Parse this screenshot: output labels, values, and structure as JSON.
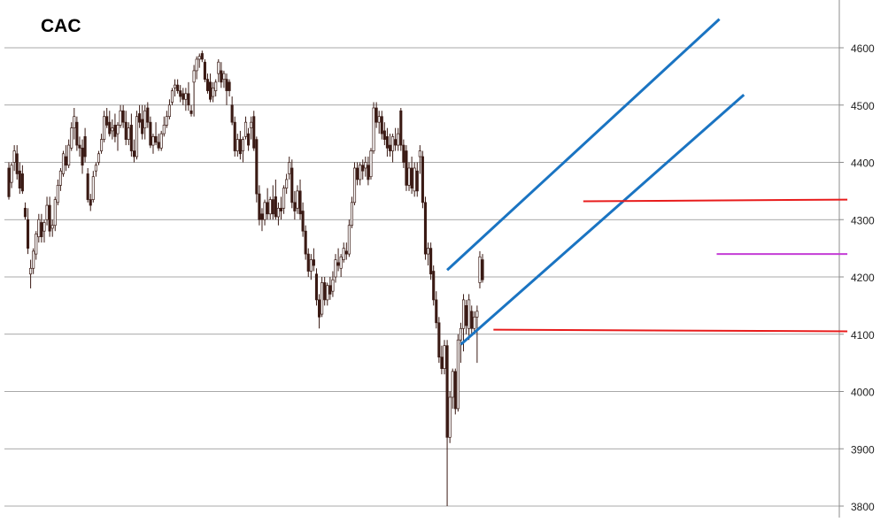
{
  "chart_data": {
    "type": "candlestick",
    "title": "CAC",
    "ylim": [
      3800,
      4650
    ],
    "y_ticks": [
      "3800",
      "3900",
      "4000",
      "4100",
      "4200",
      "4300",
      "4400",
      "4500",
      "4600"
    ],
    "grid": true,
    "y_axis_side": "right",
    "candles": [
      {
        "o": 4390,
        "h": 4400,
        "l": 4335,
        "c": 4340
      },
      {
        "o": 4365,
        "h": 4400,
        "l": 4355,
        "c": 4395
      },
      {
        "o": 4400,
        "h": 4430,
        "l": 4385,
        "c": 4420
      },
      {
        "o": 4415,
        "h": 4430,
        "l": 4370,
        "c": 4380
      },
      {
        "o": 4385,
        "h": 4400,
        "l": 4345,
        "c": 4355
      },
      {
        "o": 4380,
        "h": 4395,
        "l": 4345,
        "c": 4350
      },
      {
        "o": 4320,
        "h": 4330,
        "l": 4300,
        "c": 4305
      },
      {
        "o": 4300,
        "h": 4320,
        "l": 4240,
        "c": 4250
      },
      {
        "o": 4205,
        "h": 4230,
        "l": 4180,
        "c": 4215
      },
      {
        "o": 4215,
        "h": 4250,
        "l": 4205,
        "c": 4245
      },
      {
        "o": 4240,
        "h": 4280,
        "l": 4230,
        "c": 4275
      },
      {
        "o": 4270,
        "h": 4310,
        "l": 4260,
        "c": 4300
      },
      {
        "o": 4295,
        "h": 4310,
        "l": 4260,
        "c": 4270
      },
      {
        "o": 4280,
        "h": 4300,
        "l": 4260,
        "c": 4295
      },
      {
        "o": 4300,
        "h": 4340,
        "l": 4290,
        "c": 4325
      },
      {
        "o": 4325,
        "h": 4340,
        "l": 4270,
        "c": 4280
      },
      {
        "o": 4285,
        "h": 4300,
        "l": 4270,
        "c": 4290
      },
      {
        "o": 4290,
        "h": 4340,
        "l": 4280,
        "c": 4335
      },
      {
        "o": 4330,
        "h": 4370,
        "l": 4325,
        "c": 4360
      },
      {
        "o": 4360,
        "h": 4390,
        "l": 4350,
        "c": 4385
      },
      {
        "o": 4380,
        "h": 4420,
        "l": 4375,
        "c": 4415
      },
      {
        "o": 4410,
        "h": 4430,
        "l": 4385,
        "c": 4395
      },
      {
        "o": 4395,
        "h": 4440,
        "l": 4390,
        "c": 4430
      },
      {
        "o": 4425,
        "h": 4470,
        "l": 4420,
        "c": 4460
      },
      {
        "o": 4460,
        "h": 4495,
        "l": 4440,
        "c": 4480
      },
      {
        "o": 4470,
        "h": 4480,
        "l": 4420,
        "c": 4430
      },
      {
        "o": 4430,
        "h": 4445,
        "l": 4410,
        "c": 4425
      },
      {
        "o": 4425,
        "h": 4440,
        "l": 4380,
        "c": 4395
      },
      {
        "o": 4445,
        "h": 4460,
        "l": 4400,
        "c": 4410
      },
      {
        "o": 4380,
        "h": 4390,
        "l": 4330,
        "c": 4335
      },
      {
        "o": 4335,
        "h": 4345,
        "l": 4315,
        "c": 4325
      },
      {
        "o": 4335,
        "h": 4385,
        "l": 4330,
        "c": 4375
      },
      {
        "o": 4385,
        "h": 4400,
        "l": 4375,
        "c": 4395
      },
      {
        "o": 4400,
        "h": 4420,
        "l": 4395,
        "c": 4415
      },
      {
        "o": 4420,
        "h": 4450,
        "l": 4415,
        "c": 4440
      },
      {
        "o": 4440,
        "h": 4490,
        "l": 4435,
        "c": 4480
      },
      {
        "o": 4480,
        "h": 4495,
        "l": 4460,
        "c": 4465
      },
      {
        "o": 4470,
        "h": 4490,
        "l": 4445,
        "c": 4450
      },
      {
        "o": 4455,
        "h": 4475,
        "l": 4440,
        "c": 4460
      },
      {
        "o": 4465,
        "h": 4485,
        "l": 4435,
        "c": 4445
      },
      {
        "o": 4450,
        "h": 4470,
        "l": 4420,
        "c": 4465
      },
      {
        "o": 4465,
        "h": 4500,
        "l": 4460,
        "c": 4490
      },
      {
        "o": 4490,
        "h": 4500,
        "l": 4460,
        "c": 4470
      },
      {
        "o": 4470,
        "h": 4490,
        "l": 4430,
        "c": 4440
      },
      {
        "o": 4440,
        "h": 4470,
        "l": 4430,
        "c": 4460
      },
      {
        "o": 4465,
        "h": 4485,
        "l": 4410,
        "c": 4420
      },
      {
        "o": 4420,
        "h": 4440,
        "l": 4400,
        "c": 4410
      },
      {
        "o": 4410,
        "h": 4490,
        "l": 4405,
        "c": 4480
      },
      {
        "o": 4485,
        "h": 4500,
        "l": 4460,
        "c": 4470
      },
      {
        "o": 4475,
        "h": 4500,
        "l": 4440,
        "c": 4450
      },
      {
        "o": 4460,
        "h": 4500,
        "l": 4440,
        "c": 4490
      },
      {
        "o": 4495,
        "h": 4505,
        "l": 4460,
        "c": 4470
      },
      {
        "o": 4470,
        "h": 4480,
        "l": 4425,
        "c": 4430
      },
      {
        "o": 4430,
        "h": 4450,
        "l": 4415,
        "c": 4445
      },
      {
        "o": 4445,
        "h": 4470,
        "l": 4430,
        "c": 4435
      },
      {
        "o": 4435,
        "h": 4450,
        "l": 4420,
        "c": 4425
      },
      {
        "o": 4425,
        "h": 4455,
        "l": 4420,
        "c": 4450
      },
      {
        "o": 4450,
        "h": 4480,
        "l": 4445,
        "c": 4465
      },
      {
        "o": 4465,
        "h": 4490,
        "l": 4460,
        "c": 4480
      },
      {
        "o": 4480,
        "h": 4510,
        "l": 4475,
        "c": 4500
      },
      {
        "o": 4505,
        "h": 4530,
        "l": 4500,
        "c": 4525
      },
      {
        "o": 4530,
        "h": 4545,
        "l": 4515,
        "c": 4535
      },
      {
        "o": 4535,
        "h": 4545,
        "l": 4520,
        "c": 4525
      },
      {
        "o": 4525,
        "h": 4535,
        "l": 4505,
        "c": 4515
      },
      {
        "o": 4520,
        "h": 4530,
        "l": 4500,
        "c": 4510
      },
      {
        "o": 4510,
        "h": 4530,
        "l": 4490,
        "c": 4520
      },
      {
        "o": 4520,
        "h": 4540,
        "l": 4490,
        "c": 4500
      },
      {
        "o": 4490,
        "h": 4500,
        "l": 4480,
        "c": 4485
      },
      {
        "o": 4540,
        "h": 4570,
        "l": 4480,
        "c": 4560
      },
      {
        "o": 4560,
        "h": 4585,
        "l": 4545,
        "c": 4580
      },
      {
        "o": 4580,
        "h": 4590,
        "l": 4565,
        "c": 4585
      },
      {
        "o": 4590,
        "h": 4595,
        "l": 4575,
        "c": 4580
      },
      {
        "o": 4575,
        "h": 4580,
        "l": 4540,
        "c": 4545
      },
      {
        "o": 4545,
        "h": 4555,
        "l": 4520,
        "c": 4525
      },
      {
        "o": 4540,
        "h": 4555,
        "l": 4505,
        "c": 4510
      },
      {
        "o": 4515,
        "h": 4540,
        "l": 4505,
        "c": 4530
      },
      {
        "o": 4525,
        "h": 4545,
        "l": 4515,
        "c": 4540
      },
      {
        "o": 4555,
        "h": 4580,
        "l": 4540,
        "c": 4575
      },
      {
        "o": 4560,
        "h": 4575,
        "l": 4530,
        "c": 4540
      },
      {
        "o": 4545,
        "h": 4560,
        "l": 4530,
        "c": 4555
      },
      {
        "o": 4545,
        "h": 4555,
        "l": 4500,
        "c": 4525
      },
      {
        "o": 4540,
        "h": 4545,
        "l": 4515,
        "c": 4525
      },
      {
        "o": 4500,
        "h": 4515,
        "l": 4465,
        "c": 4470
      },
      {
        "o": 4470,
        "h": 4480,
        "l": 4410,
        "c": 4420
      },
      {
        "o": 4420,
        "h": 4450,
        "l": 4410,
        "c": 4440
      },
      {
        "o": 4440,
        "h": 4455,
        "l": 4405,
        "c": 4415
      },
      {
        "o": 4420,
        "h": 4445,
        "l": 4400,
        "c": 4440
      },
      {
        "o": 4445,
        "h": 4480,
        "l": 4440,
        "c": 4470
      },
      {
        "o": 4450,
        "h": 4460,
        "l": 4420,
        "c": 4430
      },
      {
        "o": 4460,
        "h": 4480,
        "l": 4440,
        "c": 4470
      },
      {
        "o": 4480,
        "h": 4490,
        "l": 4420,
        "c": 4425
      },
      {
        "o": 4440,
        "h": 4445,
        "l": 4330,
        "c": 4345
      },
      {
        "o": 4345,
        "h": 4360,
        "l": 4290,
        "c": 4300
      },
      {
        "o": 4310,
        "h": 4320,
        "l": 4280,
        "c": 4300
      },
      {
        "o": 4300,
        "h": 4335,
        "l": 4290,
        "c": 4330
      },
      {
        "o": 4330,
        "h": 4355,
        "l": 4300,
        "c": 4310
      },
      {
        "o": 4310,
        "h": 4340,
        "l": 4300,
        "c": 4335
      },
      {
        "o": 4335,
        "h": 4360,
        "l": 4300,
        "c": 4310
      },
      {
        "o": 4340,
        "h": 4370,
        "l": 4300,
        "c": 4305
      },
      {
        "o": 4305,
        "h": 4330,
        "l": 4290,
        "c": 4320
      },
      {
        "o": 4320,
        "h": 4340,
        "l": 4300,
        "c": 4315
      },
      {
        "o": 4320,
        "h": 4360,
        "l": 4310,
        "c": 4355
      },
      {
        "o": 4355,
        "h": 4380,
        "l": 4345,
        "c": 4370
      },
      {
        "o": 4380,
        "h": 4410,
        "l": 4370,
        "c": 4400
      },
      {
        "o": 4390,
        "h": 4405,
        "l": 4320,
        "c": 4330
      },
      {
        "o": 4330,
        "h": 4350,
        "l": 4300,
        "c": 4315
      },
      {
        "o": 4320,
        "h": 4360,
        "l": 4310,
        "c": 4350
      },
      {
        "o": 4350,
        "h": 4370,
        "l": 4300,
        "c": 4310
      },
      {
        "o": 4315,
        "h": 4330,
        "l": 4270,
        "c": 4280
      },
      {
        "o": 4280,
        "h": 4290,
        "l": 4230,
        "c": 4240
      },
      {
        "o": 4240,
        "h": 4250,
        "l": 4200,
        "c": 4210
      },
      {
        "o": 4210,
        "h": 4240,
        "l": 4195,
        "c": 4230
      },
      {
        "o": 4230,
        "h": 4250,
        "l": 4210,
        "c": 4220
      },
      {
        "o": 4205,
        "h": 4215,
        "l": 4150,
        "c": 4160
      },
      {
        "o": 4160,
        "h": 4170,
        "l": 4110,
        "c": 4130
      },
      {
        "o": 4135,
        "h": 4200,
        "l": 4130,
        "c": 4190
      },
      {
        "o": 4190,
        "h": 4200,
        "l": 4150,
        "c": 4160
      },
      {
        "o": 4160,
        "h": 4190,
        "l": 4150,
        "c": 4185
      },
      {
        "o": 4185,
        "h": 4200,
        "l": 4160,
        "c": 4170
      },
      {
        "o": 4175,
        "h": 4210,
        "l": 4165,
        "c": 4195
      },
      {
        "o": 4200,
        "h": 4240,
        "l": 4190,
        "c": 4230
      },
      {
        "o": 4225,
        "h": 4250,
        "l": 4210,
        "c": 4220
      },
      {
        "o": 4215,
        "h": 4240,
        "l": 4200,
        "c": 4235
      },
      {
        "o": 4230,
        "h": 4260,
        "l": 4225,
        "c": 4250
      },
      {
        "o": 4245,
        "h": 4260,
        "l": 4230,
        "c": 4240
      },
      {
        "o": 4240,
        "h": 4300,
        "l": 4235,
        "c": 4290
      },
      {
        "o": 4290,
        "h": 4340,
        "l": 4285,
        "c": 4330
      },
      {
        "o": 4330,
        "h": 4400,
        "l": 4325,
        "c": 4390
      },
      {
        "o": 4390,
        "h": 4400,
        "l": 4360,
        "c": 4370
      },
      {
        "o": 4370,
        "h": 4400,
        "l": 4360,
        "c": 4395
      },
      {
        "o": 4395,
        "h": 4405,
        "l": 4370,
        "c": 4385
      },
      {
        "o": 4390,
        "h": 4410,
        "l": 4375,
        "c": 4400
      },
      {
        "o": 4395,
        "h": 4410,
        "l": 4360,
        "c": 4370
      },
      {
        "o": 4375,
        "h": 4425,
        "l": 4370,
        "c": 4420
      },
      {
        "o": 4420,
        "h": 4505,
        "l": 4415,
        "c": 4495
      },
      {
        "o": 4495,
        "h": 4505,
        "l": 4460,
        "c": 4470
      },
      {
        "o": 4470,
        "h": 4490,
        "l": 4450,
        "c": 4480
      },
      {
        "o": 4480,
        "h": 4490,
        "l": 4440,
        "c": 4450
      },
      {
        "o": 4455,
        "h": 4470,
        "l": 4430,
        "c": 4440
      },
      {
        "o": 4445,
        "h": 4460,
        "l": 4410,
        "c": 4425
      },
      {
        "o": 4430,
        "h": 4450,
        "l": 4410,
        "c": 4420
      },
      {
        "o": 4420,
        "h": 4450,
        "l": 4400,
        "c": 4445
      },
      {
        "o": 4440,
        "h": 4460,
        "l": 4420,
        "c": 4430
      },
      {
        "o": 4430,
        "h": 4460,
        "l": 4420,
        "c": 4450
      },
      {
        "o": 4490,
        "h": 4495,
        "l": 4420,
        "c": 4430
      },
      {
        "o": 4430,
        "h": 4440,
        "l": 4390,
        "c": 4400
      },
      {
        "o": 4420,
        "h": 4430,
        "l": 4350,
        "c": 4360
      },
      {
        "o": 4360,
        "h": 4400,
        "l": 4350,
        "c": 4390
      },
      {
        "o": 4390,
        "h": 4410,
        "l": 4345,
        "c": 4355
      },
      {
        "o": 4350,
        "h": 4400,
        "l": 4340,
        "c": 4390
      },
      {
        "o": 4385,
        "h": 4400,
        "l": 4340,
        "c": 4350
      },
      {
        "o": 4410,
        "h": 4430,
        "l": 4380,
        "c": 4420
      },
      {
        "o": 4410,
        "h": 4420,
        "l": 4320,
        "c": 4330
      },
      {
        "o": 4330,
        "h": 4340,
        "l": 4230,
        "c": 4240
      },
      {
        "o": 4240,
        "h": 4260,
        "l": 4220,
        "c": 4250
      },
      {
        "o": 4250,
        "h": 4260,
        "l": 4195,
        "c": 4205
      },
      {
        "o": 4210,
        "h": 4220,
        "l": 4150,
        "c": 4160
      },
      {
        "o": 4160,
        "h": 4175,
        "l": 4110,
        "c": 4120
      },
      {
        "o": 4120,
        "h": 4130,
        "l": 4050,
        "c": 4060
      },
      {
        "o": 4060,
        "h": 4080,
        "l": 4030,
        "c": 4040
      },
      {
        "o": 4040,
        "h": 4090,
        "l": 4030,
        "c": 4080
      },
      {
        "o": 4080,
        "h": 4090,
        "l": 3800,
        "c": 3920
      },
      {
        "o": 3920,
        "h": 4000,
        "l": 3910,
        "c": 3990
      },
      {
        "o": 3990,
        "h": 4040,
        "l": 3970,
        "c": 4035
      },
      {
        "o": 4035,
        "h": 4040,
        "l": 3960,
        "c": 3970
      },
      {
        "o": 3970,
        "h": 4100,
        "l": 3965,
        "c": 4090
      },
      {
        "o": 4090,
        "h": 4120,
        "l": 4050,
        "c": 4110
      },
      {
        "o": 4110,
        "h": 4170,
        "l": 4070,
        "c": 4160
      },
      {
        "o": 4150,
        "h": 4160,
        "l": 4100,
        "c": 4115
      },
      {
        "o": 4110,
        "h": 4170,
        "l": 4090,
        "c": 4160
      },
      {
        "o": 4140,
        "h": 4150,
        "l": 4100,
        "c": 4110
      },
      {
        "o": 4110,
        "h": 4140,
        "l": 4100,
        "c": 4130
      },
      {
        "o": 4130,
        "h": 4150,
        "l": 4050,
        "c": 4140
      },
      {
        "o": 4190,
        "h": 4245,
        "l": 4180,
        "c": 4235
      },
      {
        "o": 4230,
        "h": 4240,
        "l": 4190,
        "c": 4195
      }
    ],
    "lines": [
      {
        "color": "#1a74c2",
        "from": {
          "i": 161,
          "v": 4212
        },
        "to": {
          "i": 261,
          "v": 4650
        }
      },
      {
        "color": "#1a74c2",
        "from": {
          "i": 166,
          "v": 4082
        },
        "to": {
          "i": 270,
          "v": 4518
        }
      },
      {
        "color": "#e81c1c",
        "from": {
          "i": 211,
          "v": 4332
        },
        "to": {
          "i": 308,
          "v": 4335
        }
      },
      {
        "color": "#e81c1c",
        "from": {
          "i": 178,
          "v": 4108
        },
        "to": {
          "i": 308,
          "v": 4105
        }
      },
      {
        "color": "#c43dd6",
        "from": {
          "i": 260,
          "v": 4240
        },
        "to": {
          "i": 308,
          "v": 4240
        }
      }
    ],
    "colors": {
      "candle_down": "#3a1a14",
      "candle_up": "#ffffff",
      "grid": "#8c8c8c",
      "axis": "#8c8c8c",
      "text": "#222222"
    }
  }
}
